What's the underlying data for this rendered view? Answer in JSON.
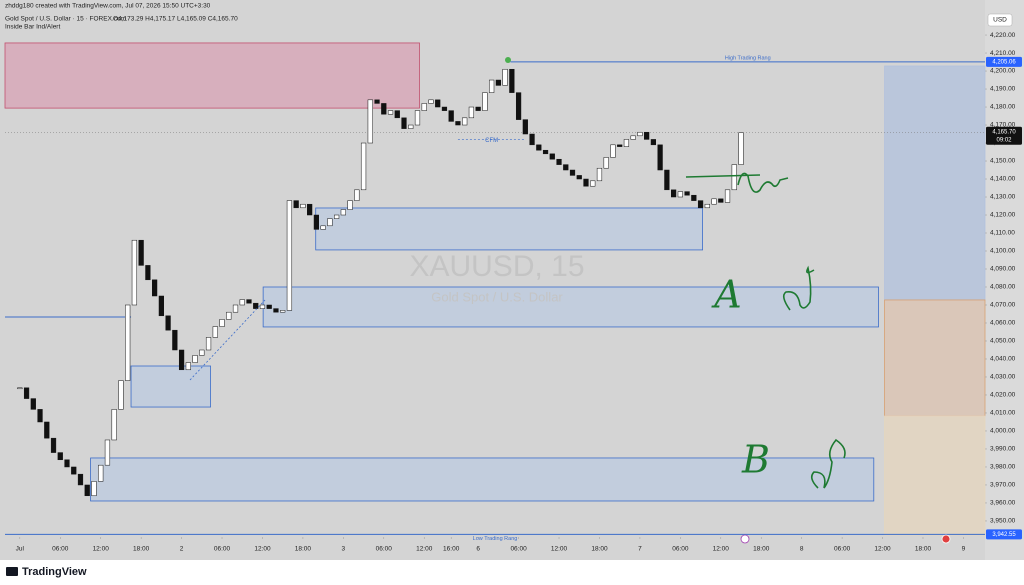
{
  "chart_data": {
    "type": "candlestick",
    "header": {
      "author": "zhddg180 created with TradingView.com, Jul 07, 2026 15:50 UTC+3:30",
      "symbol": "Gold Spot / U.S. Dollar · 15 · FOREX.com",
      "ohlc": "O4,173.29 H4,175.17 L4,165.09 C4,165.70",
      "indicator": "Inside Bar Ind/Alert"
    },
    "currency": "USD",
    "watermark": "XAUUSD, 15",
    "watermark_sub": "Gold Spot / U.S. Dollar",
    "footer": "TradingView",
    "x": [
      0,
      1,
      2,
      3,
      4,
      5,
      6,
      7,
      8,
      9,
      10,
      11,
      12,
      13,
      14,
      15,
      16,
      17,
      18,
      19,
      20,
      21,
      22,
      23,
      24,
      25,
      26,
      27,
      28,
      29,
      30,
      31,
      32,
      33,
      34,
      35,
      36,
      37,
      38,
      39,
      40,
      41,
      42,
      43,
      44,
      45,
      46,
      47,
      48,
      49,
      50,
      51,
      52,
      53,
      54,
      55,
      56,
      57,
      58,
      59,
      60,
      61,
      62,
      63,
      64,
      65,
      66,
      67,
      68,
      69,
      70,
      71,
      72,
      73,
      74,
      75,
      76,
      77,
      78,
      79,
      80,
      81,
      82,
      83,
      84,
      85,
      86,
      87,
      88,
      89,
      90,
      91,
      92,
      93,
      94,
      95,
      96,
      97,
      98,
      99,
      100,
      101,
      102,
      103,
      104,
      105,
      106,
      107
    ],
    "values": [
      4024,
      4018,
      4012,
      4005,
      3996,
      3988,
      3984,
      3980,
      3976,
      3970,
      3964,
      3972,
      3981,
      3995,
      4012,
      4028,
      4070,
      4106,
      4092,
      4084,
      4075,
      4064,
      4056,
      4045,
      4034,
      4038,
      4042,
      4045,
      4052,
      4058,
      4062,
      4066,
      4070,
      4073,
      4071,
      4068,
      4070,
      4068,
      4066,
      4067,
      4128,
      4124,
      4126,
      4120,
      4112,
      4114,
      4118,
      4120,
      4123,
      4128,
      4134,
      4160,
      4184,
      4182,
      4176,
      4178,
      4174,
      4168,
      4170,
      4178,
      4182,
      4184,
      4180,
      4178,
      4172,
      4170,
      4174,
      4180,
      4178,
      4188,
      4195,
      4192,
      4201,
      4188,
      4173,
      4165,
      4159,
      4156,
      4154,
      4151,
      4148,
      4145,
      4142,
      4140,
      4136,
      4139,
      4146,
      4152,
      4159,
      4158,
      4162,
      4164,
      4166,
      4162,
      4159,
      4145,
      4134,
      4130,
      4133,
      4131,
      4128,
      4124,
      4126,
      4129,
      4127,
      4134,
      4148,
      4165.7
    ],
    "up_color": "#ffffff",
    "down_color": "#111111",
    "xlim": [
      -2.2,
      143.2
    ],
    "ylim": [
      3942.2,
      4232.8
    ],
    "xticks": [
      {
        "value": 0,
        "label": "Jul"
      },
      {
        "value": 6,
        "label": "06:00"
      },
      {
        "value": 12,
        "label": "12:00"
      },
      {
        "value": 18,
        "label": "18:00"
      },
      {
        "value": 24,
        "label": "2"
      },
      {
        "value": 30,
        "label": "06:00"
      },
      {
        "value": 36,
        "label": "12:00"
      },
      {
        "value": 42,
        "label": "18:00"
      },
      {
        "value": 48,
        "label": "3"
      },
      {
        "value": 54,
        "label": "06:00"
      },
      {
        "value": 60,
        "label": "12:00"
      },
      {
        "value": 64,
        "label": "16:00"
      },
      {
        "value": 68,
        "label": "6"
      },
      {
        "value": 74,
        "label": "06:00"
      },
      {
        "value": 80,
        "label": "12:00"
      },
      {
        "value": 86,
        "label": "18:00"
      },
      {
        "value": 92,
        "label": "7"
      },
      {
        "value": 98,
        "label": "06:00"
      },
      {
        "value": 104,
        "label": "12:00"
      },
      {
        "value": 110,
        "label": "18:00"
      },
      {
        "value": 116,
        "label": "8"
      },
      {
        "value": 122,
        "label": "06:00"
      },
      {
        "value": 128,
        "label": "12:00"
      },
      {
        "value": 134,
        "label": "18:00"
      },
      {
        "value": 140,
        "label": "9"
      }
    ],
    "yticks": [
      {
        "value": 3950,
        "label": "3,950.00"
      },
      {
        "value": 3960,
        "label": "3,960.00"
      },
      {
        "value": 3970,
        "label": "3,970.00"
      },
      {
        "value": 3980,
        "label": "3,980.00"
      },
      {
        "value": 3990,
        "label": "3,990.00"
      },
      {
        "value": 4000,
        "label": "4,000.00"
      },
      {
        "value": 4010,
        "label": "4,010.00"
      },
      {
        "value": 4020,
        "label": "4,020.00"
      },
      {
        "value": 4030,
        "label": "4,030.00"
      },
      {
        "value": 4040,
        "label": "4,040.00"
      },
      {
        "value": 4050,
        "label": "4,050.00"
      },
      {
        "value": 4060,
        "label": "4,060.00"
      },
      {
        "value": 4070,
        "label": "4,070.00"
      },
      {
        "value": 4080,
        "label": "4,080.00"
      },
      {
        "value": 4090,
        "label": "4,090.00"
      },
      {
        "value": 4100,
        "label": "4,100.00"
      },
      {
        "value": 4110,
        "label": "4,110.00"
      },
      {
        "value": 4120,
        "label": "4,120.00"
      },
      {
        "value": 4130,
        "label": "4,130.00"
      },
      {
        "value": 4140,
        "label": "4,140.00"
      },
      {
        "value": 4150,
        "label": "4,150.00"
      },
      {
        "value": 4160,
        "label": "4,160.00"
      },
      {
        "value": 4170,
        "label": "4,170.00"
      },
      {
        "value": 4180,
        "label": "4,180.00"
      },
      {
        "value": 4190,
        "label": "4,190.00"
      },
      {
        "value": 4200,
        "label": "4,200.00"
      },
      {
        "value": 4210,
        "label": "4,210.00"
      },
      {
        "value": 4220,
        "label": "4,220.00"
      }
    ],
    "grid": false,
    "zones": [
      {
        "x": [
          -2.2,
          59.3
        ],
        "y": [
          4215.6,
          4179.4
        ],
        "color": "#d8a3b5",
        "border": "#c2506e"
      },
      {
        "x": [
          43.9,
          101.3
        ],
        "y": [
          4123.9,
          4100.6
        ],
        "color": "#bccbe0",
        "border": "#3b6cc9"
      },
      {
        "x": [
          36.1,
          127.4
        ],
        "y": [
          4080.0,
          4057.8
        ],
        "color": "#bccbe0",
        "border": "#3b6cc9"
      },
      {
        "x": [
          16.5,
          28.3
        ],
        "y": [
          4036.1,
          4013.3
        ],
        "color": "#bccbe0",
        "border": "#3b6cc9"
      },
      {
        "x": [
          10.5,
          126.7
        ],
        "y": [
          3985.0,
          3961.1
        ],
        "color": "#bccbe0",
        "border": "#3b6cc9"
      },
      {
        "x": [
          128.3,
          143.2
        ],
        "y": [
          4202.8,
          4072.8
        ],
        "color": "#b2c1de",
        "border": "#b2c1de"
      },
      {
        "x": [
          128.3,
          143.2
        ],
        "y": [
          4072.8,
          4008.3
        ],
        "color": "#dcc3b0",
        "border": "#d8a070"
      },
      {
        "x": [
          128.3,
          143.2
        ],
        "y": [
          4008.3,
          3942.2
        ],
        "color": "#e6d6bd",
        "border": "#e6d6bd"
      }
    ],
    "levels": {
      "high": {
        "value": 4205.06,
        "label": "4,205.06",
        "name": "High Trading Rang",
        "start": 72.8
      },
      "low": {
        "value": 3942.55,
        "label": "3,942.55",
        "name": "Low Trading Rang",
        "start": -2.2
      },
      "last": {
        "value": 4165.7,
        "label": "4,165.70",
        "countdown": "09:02"
      }
    },
    "cfm": {
      "label": "CFM",
      "value": 4162,
      "x": [
        65,
        75
      ]
    },
    "annotations": [
      "A",
      "B"
    ]
  }
}
